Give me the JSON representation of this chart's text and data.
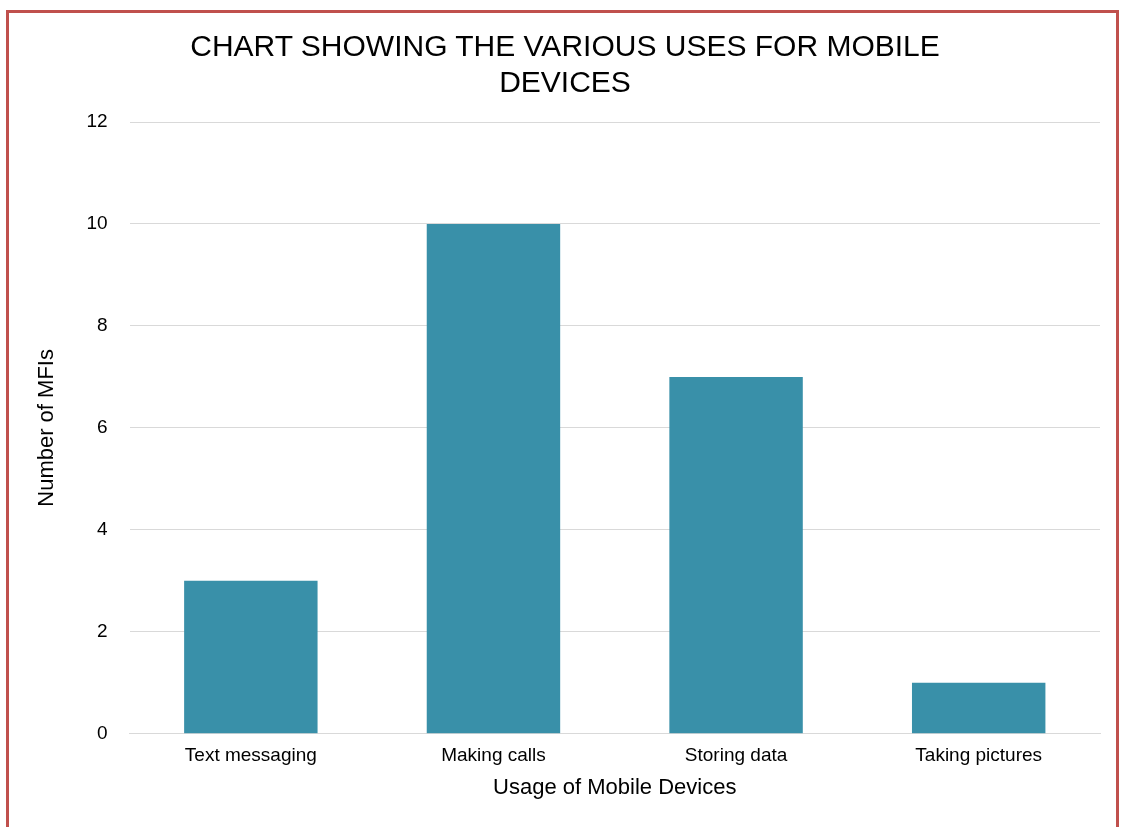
{
  "chart_data": {
    "type": "bar",
    "title": "CHART SHOWING THE VARIOUS USES FOR MOBILE DEVICES",
    "xlabel": "Usage of Mobile Devices",
    "ylabel": "Number of MFIs",
    "categories": [
      "Text messaging",
      "Making calls",
      "Storing data",
      "Taking pictures"
    ],
    "values": [
      3,
      10,
      7,
      1
    ],
    "color": "#3990a9",
    "ylim": [
      0,
      12
    ],
    "yticks": [
      0,
      2,
      4,
      6,
      8,
      10,
      12
    ],
    "grid": "y",
    "legend": false
  }
}
